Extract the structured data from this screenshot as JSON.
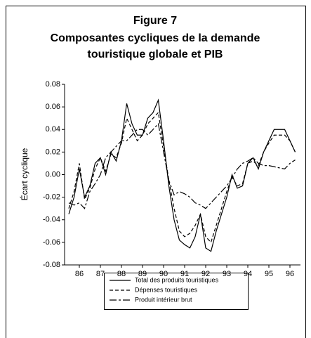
{
  "chart_data": {
    "type": "line",
    "figure": "Figure 7",
    "title": [
      "Composantes cycliques de la demande",
      "touristique globale et PIB"
    ],
    "ylabel": "Écart cyclique",
    "x": [
      86,
      86.25,
      86.5,
      86.75,
      87,
      87.25,
      87.5,
      87.75,
      88,
      88.25,
      88.5,
      88.75,
      89,
      89.25,
      89.5,
      89.75,
      90,
      90.25,
      90.5,
      90.75,
      91,
      91.25,
      91.5,
      91.75,
      92,
      92.25,
      92.5,
      92.75,
      93,
      93.25,
      93.5,
      93.75,
      94,
      94.25,
      94.5,
      94.75,
      95,
      95.25,
      95.5,
      95.75,
      96,
      96.25,
      96.5,
      96.75
    ],
    "series": [
      {
        "name": "Total des produits touristiques",
        "color": "#000000",
        "dash": "solid",
        "values": [
          -0.035,
          -0.02,
          0.005,
          -0.02,
          -0.01,
          0.01,
          0.015,
          0.0,
          0.02,
          0.012,
          0.03,
          0.063,
          0.045,
          0.035,
          0.035,
          0.05,
          0.055,
          0.066,
          0.03,
          -0.01,
          -0.04,
          -0.058,
          -0.062,
          -0.065,
          -0.055,
          -0.035,
          -0.065,
          -0.068,
          -0.05,
          -0.035,
          -0.02,
          0.0,
          -0.012,
          -0.01,
          0.01,
          0.015,
          0.005,
          0.02,
          0.03,
          0.04,
          0.04,
          0.04,
          0.03,
          0.02
        ]
      },
      {
        "name": "Dépenses touristiques",
        "color": "#000000",
        "dash": "dashed",
        "values": [
          -0.03,
          -0.015,
          0.01,
          -0.022,
          -0.012,
          0.005,
          0.015,
          0.003,
          0.018,
          0.015,
          0.028,
          0.05,
          0.04,
          0.03,
          0.035,
          0.045,
          0.05,
          0.055,
          0.025,
          -0.005,
          -0.03,
          -0.05,
          -0.055,
          -0.052,
          -0.045,
          -0.035,
          -0.055,
          -0.06,
          -0.045,
          -0.03,
          -0.015,
          -0.002,
          -0.01,
          -0.008,
          0.01,
          0.012,
          0.008,
          0.02,
          0.028,
          0.035,
          0.035,
          0.035,
          0.03,
          0.02
        ]
      },
      {
        "name": "Produit intérieur brut",
        "color": "#000000",
        "dash": "longdash",
        "values": [
          -0.025,
          -0.027,
          -0.025,
          -0.03,
          -0.015,
          -0.008,
          0.0,
          0.015,
          0.02,
          0.025,
          0.03,
          0.03,
          0.035,
          0.04,
          0.04,
          0.035,
          0.04,
          0.045,
          0.02,
          -0.005,
          -0.018,
          -0.015,
          -0.017,
          -0.02,
          -0.025,
          -0.027,
          -0.03,
          -0.025,
          -0.02,
          -0.015,
          -0.01,
          -0.003,
          0.005,
          0.01,
          0.012,
          0.015,
          0.01,
          0.008,
          0.008,
          0.007,
          0.006,
          0.005,
          0.01,
          0.013
        ]
      }
    ],
    "xlim": [
      85.8,
      97
    ],
    "xticks": [
      {
        "value": 86.5,
        "label": "86"
      },
      {
        "value": 87.5,
        "label": "87"
      },
      {
        "value": 88.5,
        "label": "88"
      },
      {
        "value": 89.5,
        "label": "89"
      },
      {
        "value": 90.5,
        "label": "90"
      },
      {
        "value": 91.5,
        "label": "91"
      },
      {
        "value": 92.5,
        "label": "92"
      },
      {
        "value": 93.5,
        "label": "93"
      },
      {
        "value": 94.5,
        "label": "94"
      },
      {
        "value": 95.5,
        "label": "95"
      },
      {
        "value": 96.5,
        "label": "96"
      }
    ],
    "ylim": [
      -0.08,
      0.08
    ],
    "yticks": [
      {
        "value": 0.08,
        "label": "0.08"
      },
      {
        "value": 0.06,
        "label": "0.06"
      },
      {
        "value": 0.04,
        "label": "0.04"
      },
      {
        "value": 0.02,
        "label": "0.02"
      },
      {
        "value": 0,
        "label": "0.00"
      },
      {
        "value": -0.02,
        "label": "-0.02"
      },
      {
        "value": -0.04,
        "label": "-0.04"
      },
      {
        "value": -0.06,
        "label": "-0.06"
      },
      {
        "value": -0.08,
        "label": "-0.08"
      }
    ],
    "grid": false,
    "legend": "bottom"
  }
}
